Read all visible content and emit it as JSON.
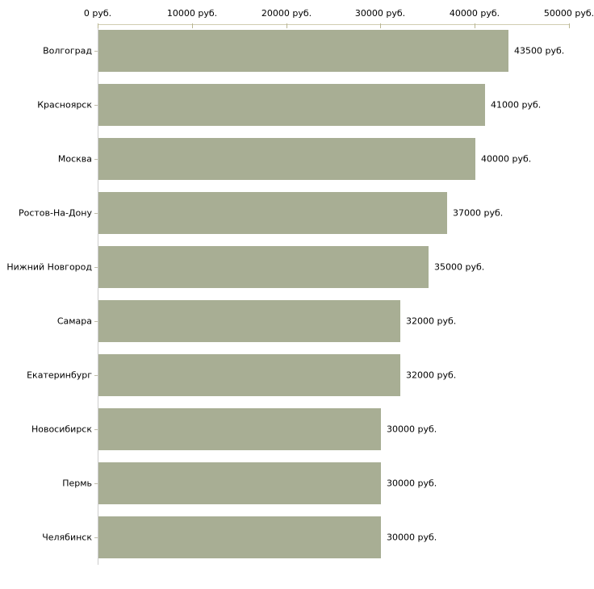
{
  "chart_data": {
    "type": "bar",
    "orientation": "horizontal",
    "title": "",
    "xlabel": "",
    "ylabel": "",
    "xlim": [
      0,
      50000
    ],
    "grid": false,
    "legend": "none",
    "axis_position": "top",
    "categories": [
      "Волгоград",
      "Красноярск",
      "Москва",
      "Ростов-На-Дону",
      "Нижний Новгород",
      "Самара",
      "Екатеринбург",
      "Новосибирск",
      "Пермь",
      "Челябинск"
    ],
    "values": [
      43500,
      41000,
      40000,
      37000,
      35000,
      32000,
      32000,
      30000,
      30000,
      30000
    ],
    "value_labels": [
      "43500 руб.",
      "41000 руб.",
      "40000 руб.",
      "37000 руб.",
      "35000 руб.",
      "32000 руб.",
      "32000 руб.",
      "30000 руб.",
      "30000 руб.",
      "30000 руб."
    ],
    "x_ticks": [
      0,
      10000,
      20000,
      30000,
      40000,
      50000
    ],
    "x_tick_labels": [
      "0 руб.",
      "10000 руб.",
      "20000 руб.",
      "30000 руб.",
      "40000 руб.",
      "50000 руб."
    ],
    "colors": {
      "bar": "#a8ae94",
      "x_axis_line": "#d0cdb0",
      "x_tick": "#b9b692",
      "y_axis_line": "#cccccc",
      "category_tick": "#bfbcaa",
      "text": "#000000",
      "background": "#ffffff"
    }
  }
}
